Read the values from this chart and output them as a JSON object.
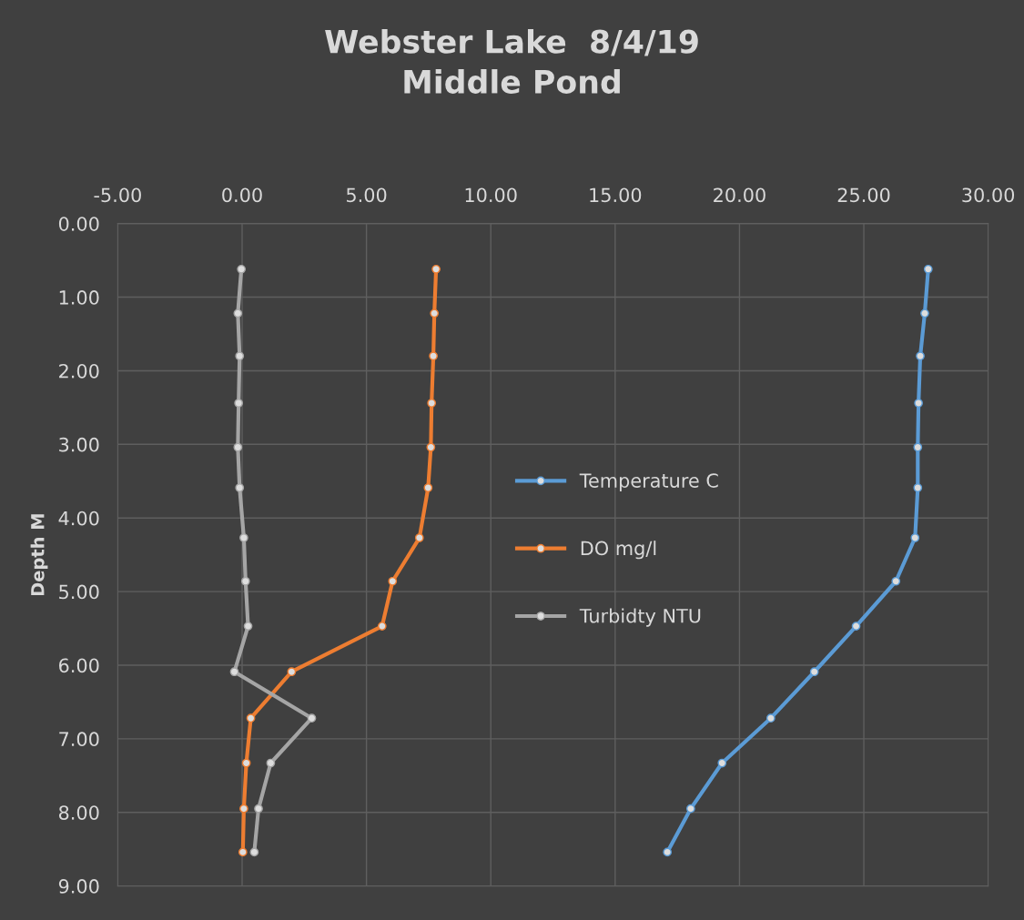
{
  "chart_data": {
    "type": "line",
    "title": "Webster Lake  8/4/19\nMiddle Pond",
    "ylabel": "Depth M",
    "xlim": [
      -5,
      30
    ],
    "xticks": [
      {
        "value": -5,
        "label": "-5.00"
      },
      {
        "value": 0,
        "label": "0.00"
      },
      {
        "value": 5,
        "label": "5.00"
      },
      {
        "value": 10,
        "label": "10.00"
      },
      {
        "value": 15,
        "label": "15.00"
      },
      {
        "value": 20,
        "label": "20.00"
      },
      {
        "value": 25,
        "label": "25.00"
      },
      {
        "value": 30,
        "label": "30.00"
      }
    ],
    "ylim": [
      9,
      0
    ],
    "yticks": [
      {
        "value": 0,
        "label": "0.00"
      },
      {
        "value": 1,
        "label": "1.00"
      },
      {
        "value": 2,
        "label": "2.00"
      },
      {
        "value": 3,
        "label": "3.00"
      },
      {
        "value": 4,
        "label": "4.00"
      },
      {
        "value": 5,
        "label": "5.00"
      },
      {
        "value": 6,
        "label": "6.00"
      },
      {
        "value": 7,
        "label": "7.00"
      },
      {
        "value": 8,
        "label": "8.00"
      },
      {
        "value": 9,
        "label": "9.00"
      }
    ],
    "grid": true,
    "legend": "center",
    "marker": "circle",
    "line_style": "solid",
    "series": [
      {
        "name": "Temperature C",
        "color": "#5b9bd5",
        "x": [
          27.59,
          27.45,
          27.27,
          27.2,
          27.17,
          27.17,
          27.06,
          26.29,
          24.69,
          23.01,
          21.26,
          19.3,
          18.04,
          17.1
        ],
        "values": [
          0.62,
          1.22,
          1.8,
          2.44,
          3.04,
          3.59,
          4.27,
          4.86,
          5.47,
          6.09,
          6.72,
          7.33,
          7.95,
          8.54
        ]
      },
      {
        "name": "DO mg/l",
        "color": "#ed7d31",
        "x": [
          7.8,
          7.73,
          7.69,
          7.62,
          7.59,
          7.48,
          7.13,
          6.05,
          5.63,
          1.99,
          0.35,
          0.17,
          0.07,
          0.03
        ],
        "values": [
          0.62,
          1.22,
          1.8,
          2.44,
          3.04,
          3.59,
          4.27,
          4.86,
          5.47,
          6.09,
          6.72,
          7.33,
          7.95,
          8.54
        ]
      },
      {
        "name": "Turbidty NTU",
        "color": "#a5a5a5",
        "x": [
          -0.03,
          -0.17,
          -0.1,
          -0.14,
          -0.17,
          -0.1,
          0.07,
          0.14,
          0.24,
          -0.31,
          2.8,
          1.15,
          0.66,
          0.49
        ],
        "values": [
          0.62,
          1.22,
          1.8,
          2.44,
          3.04,
          3.59,
          4.27,
          4.86,
          5.47,
          6.09,
          6.72,
          7.33,
          7.95,
          8.54
        ]
      }
    ]
  }
}
